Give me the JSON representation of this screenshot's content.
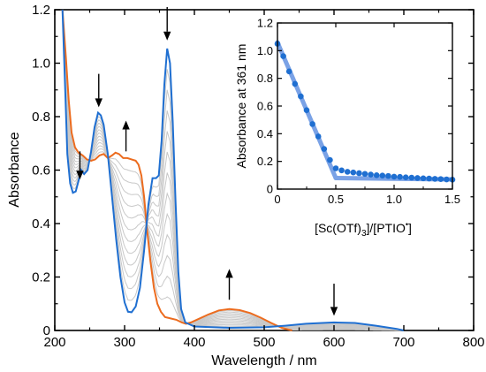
{
  "chart_data": [
    {
      "id": "main",
      "type": "line",
      "xlabel": "Wavelength / nm",
      "ylabel": "Absorbance",
      "xlim": [
        200,
        800
      ],
      "ylim": [
        0,
        1.2
      ],
      "x_ticks": [
        200,
        300,
        400,
        500,
        600,
        700,
        800
      ],
      "x_tick_labels": [
        "200",
        "300",
        "400",
        "500",
        "600",
        "700",
        "800"
      ],
      "y_ticks": [
        0,
        0.2,
        0.4,
        0.6,
        0.8,
        1.0,
        1.2
      ],
      "y_tick_labels": [
        "0",
        "0.2",
        "0.4",
        "0.6",
        "0.8",
        "1.0",
        "1.2"
      ],
      "grid": false,
      "intermediate_count": 12,
      "series": [
        {
          "role": "initial",
          "color": "#1f6fd1",
          "points": [
            [
              211,
              1.2
            ],
            [
              215,
              0.9
            ],
            [
              218,
              0.66
            ],
            [
              222,
              0.55
            ],
            [
              226,
              0.515
            ],
            [
              230,
              0.52
            ],
            [
              234,
              0.56
            ],
            [
              238,
              0.6
            ],
            [
              242,
              0.585
            ],
            [
              247,
              0.6
            ],
            [
              252,
              0.67
            ],
            [
              257,
              0.76
            ],
            [
              262,
              0.815
            ],
            [
              266,
              0.805
            ],
            [
              270,
              0.77
            ],
            [
              276,
              0.66
            ],
            [
              282,
              0.5
            ],
            [
              288,
              0.34
            ],
            [
              294,
              0.2
            ],
            [
              300,
              0.105
            ],
            [
              305,
              0.07
            ],
            [
              310,
              0.068
            ],
            [
              316,
              0.09
            ],
            [
              322,
              0.16
            ],
            [
              328,
              0.3
            ],
            [
              334,
              0.47
            ],
            [
              340,
              0.57
            ],
            [
              345,
              0.57
            ],
            [
              349,
              0.58
            ],
            [
              353,
              0.71
            ],
            [
              357,
              0.92
            ],
            [
              361,
              1.055
            ],
            [
              365,
              1.0
            ],
            [
              369,
              0.78
            ],
            [
              373,
              0.48
            ],
            [
              377,
              0.22
            ],
            [
              381,
              0.08
            ],
            [
              387,
              0.03
            ],
            [
              400,
              0.015
            ],
            [
              450,
              0.01
            ],
            [
              500,
              0.012
            ],
            [
              530,
              0.018
            ],
            [
              560,
              0.025
            ],
            [
              600,
              0.03
            ],
            [
              630,
              0.028
            ],
            [
              660,
              0.018
            ],
            [
              690,
              0.006
            ],
            [
              700,
              0.0
            ]
          ]
        },
        {
          "role": "final",
          "color": "#ec6c1f",
          "points": [
            [
              211,
              1.2
            ],
            [
              216,
              1.02
            ],
            [
              220,
              0.86
            ],
            [
              224,
              0.74
            ],
            [
              229,
              0.685
            ],
            [
              234,
              0.665
            ],
            [
              240,
              0.655
            ],
            [
              246,
              0.64
            ],
            [
              252,
              0.635
            ],
            [
              258,
              0.64
            ],
            [
              264,
              0.655
            ],
            [
              270,
              0.66
            ],
            [
              276,
              0.645
            ],
            [
              282,
              0.655
            ],
            [
              287,
              0.665
            ],
            [
              292,
              0.66
            ],
            [
              298,
              0.645
            ],
            [
              304,
              0.645
            ],
            [
              310,
              0.64
            ],
            [
              316,
              0.635
            ],
            [
              320,
              0.62
            ],
            [
              324,
              0.58
            ],
            [
              328,
              0.5
            ],
            [
              332,
              0.38
            ],
            [
              337,
              0.26
            ],
            [
              342,
              0.16
            ],
            [
              347,
              0.1
            ],
            [
              352,
              0.07
            ],
            [
              358,
              0.05
            ],
            [
              366,
              0.045
            ],
            [
              374,
              0.04
            ],
            [
              382,
              0.03
            ],
            [
              388,
              0.025
            ],
            [
              395,
              0.03
            ],
            [
              405,
              0.042
            ],
            [
              420,
              0.06
            ],
            [
              435,
              0.075
            ],
            [
              450,
              0.08
            ],
            [
              465,
              0.076
            ],
            [
              480,
              0.065
            ],
            [
              495,
              0.048
            ],
            [
              510,
              0.028
            ],
            [
              525,
              0.01
            ],
            [
              540,
              0.0
            ]
          ]
        }
      ],
      "arrows": [
        {
          "x": 236,
          "direction": "down",
          "from": 0.67,
          "to": 0.565
        },
        {
          "x": 263,
          "direction": "down",
          "from": 0.96,
          "to": 0.835
        },
        {
          "x": 302,
          "direction": "up",
          "from": 0.67,
          "to": 0.785
        },
        {
          "x": 361,
          "direction": "down",
          "from": 1.21,
          "to": 1.085
        },
        {
          "x": 450,
          "direction": "up",
          "from": 0.115,
          "to": 0.23
        },
        {
          "x": 600,
          "direction": "down",
          "from": 0.175,
          "to": 0.055
        }
      ]
    },
    {
      "id": "inset",
      "type": "scatter",
      "xlabel": "[Sc(OTf)",
      "xlabel_sub": "3",
      "xlabel_mid": "]/[PTIO",
      "xlabel_sup": "•",
      "xlabel_end": "]",
      "ylabel": "Absorbance at 361 nm",
      "xlim": [
        0,
        1.5
      ],
      "ylim": [
        0,
        1.2
      ],
      "x_ticks": [
        0,
        0.5,
        1.0,
        1.5
      ],
      "x_tick_labels": [
        "0",
        "0.5",
        "1.0",
        "1.5"
      ],
      "y_ticks": [
        0,
        0.2,
        0.4,
        0.6,
        0.8,
        1.0,
        1.2
      ],
      "y_tick_labels": [
        "0",
        "0.2",
        "0.4",
        "0.6",
        "0.8",
        "1.0",
        "1.2"
      ],
      "point_color": "#1f6fd1",
      "fit_color": "#7aa2e6",
      "points": [
        [
          0.0,
          1.05
        ],
        [
          0.05,
          0.96
        ],
        [
          0.1,
          0.85
        ],
        [
          0.15,
          0.76
        ],
        [
          0.2,
          0.67
        ],
        [
          0.25,
          0.57
        ],
        [
          0.3,
          0.47
        ],
        [
          0.35,
          0.38
        ],
        [
          0.4,
          0.29
        ],
        [
          0.45,
          0.21
        ],
        [
          0.5,
          0.15
        ],
        [
          0.55,
          0.135
        ],
        [
          0.6,
          0.125
        ],
        [
          0.65,
          0.12
        ],
        [
          0.7,
          0.115
        ],
        [
          0.75,
          0.11
        ],
        [
          0.8,
          0.105
        ],
        [
          0.85,
          0.1
        ],
        [
          0.9,
          0.098
        ],
        [
          0.95,
          0.095
        ],
        [
          1.0,
          0.09
        ],
        [
          1.05,
          0.088
        ],
        [
          1.1,
          0.085
        ],
        [
          1.15,
          0.083
        ],
        [
          1.2,
          0.08
        ],
        [
          1.25,
          0.078
        ],
        [
          1.3,
          0.076
        ],
        [
          1.35,
          0.074
        ],
        [
          1.4,
          0.072
        ],
        [
          1.45,
          0.07
        ],
        [
          1.5,
          0.068
        ]
      ],
      "fit_line_1": [
        [
          0.0,
          1.06
        ],
        [
          0.5,
          0.08
        ]
      ],
      "fit_line_2": [
        [
          0.5,
          0.08
        ],
        [
          1.5,
          0.07
        ]
      ]
    }
  ]
}
